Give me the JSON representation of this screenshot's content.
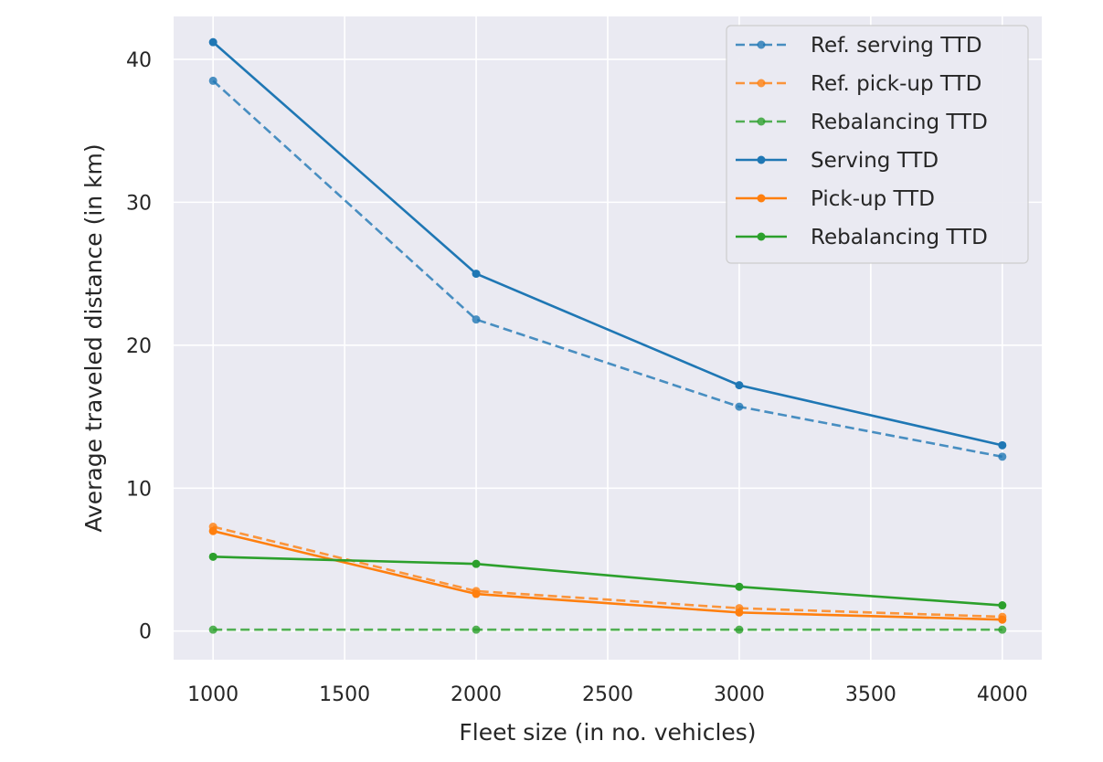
{
  "chart_data": {
    "type": "line",
    "title": "",
    "xlabel": "Fleet size (in no. vehicles)",
    "ylabel": "Average traveled distance (in km)",
    "xlim": [
      850,
      4150
    ],
    "ylim": [
      -2,
      43
    ],
    "xticks": [
      1000,
      1500,
      2000,
      2500,
      3000,
      3500,
      4000
    ],
    "yticks": [
      0,
      10,
      20,
      30,
      40
    ],
    "grid": true,
    "legend_position": "top-right",
    "x": [
      1000,
      2000,
      3000,
      4000
    ],
    "series": [
      {
        "name": "Ref. serving TTD",
        "values": [
          38.5,
          21.8,
          15.7,
          12.2
        ],
        "color": "#1f77b4",
        "style": "dashed"
      },
      {
        "name": "Ref. pick-up TTD",
        "values": [
          7.3,
          2.8,
          1.6,
          1.0
        ],
        "color": "#ff7f0e",
        "style": "dashed"
      },
      {
        "name": "Rebalancing TTD",
        "values": [
          0.1,
          0.1,
          0.1,
          0.1
        ],
        "color": "#2ca02c",
        "style": "dashed"
      },
      {
        "name": "Serving TTD",
        "values": [
          41.2,
          25.0,
          17.2,
          13.0
        ],
        "color": "#1f77b4",
        "style": "solid"
      },
      {
        "name": "Pick-up TTD",
        "values": [
          7.0,
          2.6,
          1.3,
          0.8
        ],
        "color": "#ff7f0e",
        "style": "solid"
      },
      {
        "name": "Rebalancing TTD",
        "values": [
          5.2,
          4.7,
          3.1,
          1.8
        ],
        "color": "#2ca02c",
        "style": "solid"
      }
    ]
  }
}
